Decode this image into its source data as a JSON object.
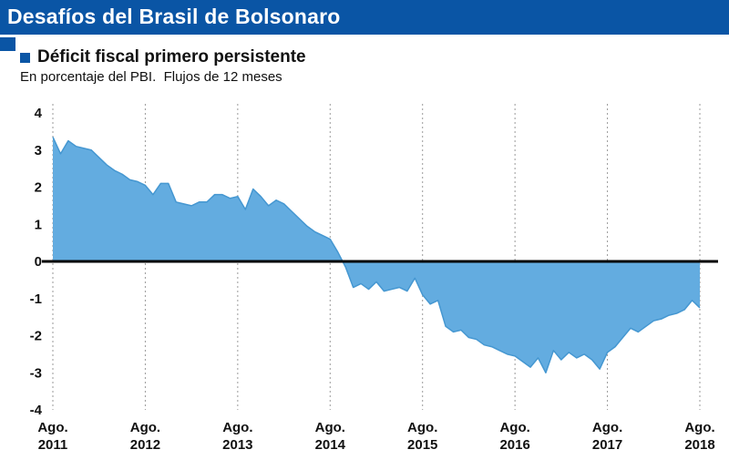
{
  "header": {
    "title": "Desafíos del Brasil de Bolsonaro"
  },
  "subtitle": "Déficit fiscal primero persistente",
  "note": "En porcentaje del PBI.  Flujos de 12 meses",
  "colors": {
    "banner_blue": "#0a55a5",
    "area_fill": "#63ace0",
    "area_stroke": "#4597d1",
    "zero_line": "#000000",
    "gridline": "#9a9a9a",
    "axis_text": "#111111"
  },
  "chart_data": {
    "type": "area",
    "title": "Déficit fiscal primero persistente",
    "subtitle_note": "En porcentaje del PBI. Flujos de 12 meses",
    "ylabel": "Porcentaje del PBI (flujos de 12 meses)",
    "ylim": [
      -4,
      4
    ],
    "yticks": [
      4,
      3,
      2,
      1,
      0,
      -1,
      -2,
      -3,
      -4
    ],
    "baseline": 0,
    "grid": "vertical-dotted",
    "legend_position": "none",
    "x_unit": "month",
    "x_start": "Ago. 2011",
    "x_end": "Ago. 2018",
    "tick_labels": [
      {
        "line1": "Ago.",
        "line2": "2011"
      },
      {
        "line1": "Ago.",
        "line2": "2012"
      },
      {
        "line1": "Ago.",
        "line2": "2013"
      },
      {
        "line1": "Ago.",
        "line2": "2014"
      },
      {
        "line1": "Ago.",
        "line2": "2015"
      },
      {
        "line1": "Ago.",
        "line2": "2016"
      },
      {
        "line1": "Ago.",
        "line2": "2017"
      },
      {
        "line1": "Ago.",
        "line2": "2018"
      }
    ],
    "tick_month_indices": [
      0,
      12,
      24,
      36,
      48,
      60,
      72,
      84
    ],
    "values": [
      3.35,
      2.9,
      3.25,
      3.1,
      3.05,
      3.0,
      2.8,
      2.6,
      2.45,
      2.35,
      2.2,
      2.15,
      2.05,
      1.8,
      2.1,
      2.1,
      1.6,
      1.55,
      1.5,
      1.6,
      1.6,
      1.8,
      1.8,
      1.7,
      1.75,
      1.4,
      1.95,
      1.75,
      1.5,
      1.65,
      1.55,
      1.35,
      1.15,
      0.95,
      0.8,
      0.7,
      0.6,
      0.25,
      -0.15,
      -0.7,
      -0.6,
      -0.75,
      -0.55,
      -0.8,
      -0.75,
      -0.7,
      -0.8,
      -0.45,
      -0.9,
      -1.15,
      -1.05,
      -1.75,
      -1.9,
      -1.85,
      -2.05,
      -2.1,
      -2.25,
      -2.3,
      -2.4,
      -2.5,
      -2.55,
      -2.7,
      -2.85,
      -2.6,
      -3.0,
      -2.4,
      -2.65,
      -2.45,
      -2.6,
      -2.5,
      -2.65,
      -2.9,
      -2.45,
      -2.3,
      -2.05,
      -1.8,
      -1.9,
      -1.75,
      -1.6,
      -1.55,
      -1.45,
      -1.4,
      -1.3,
      -1.05,
      -1.25
    ]
  }
}
